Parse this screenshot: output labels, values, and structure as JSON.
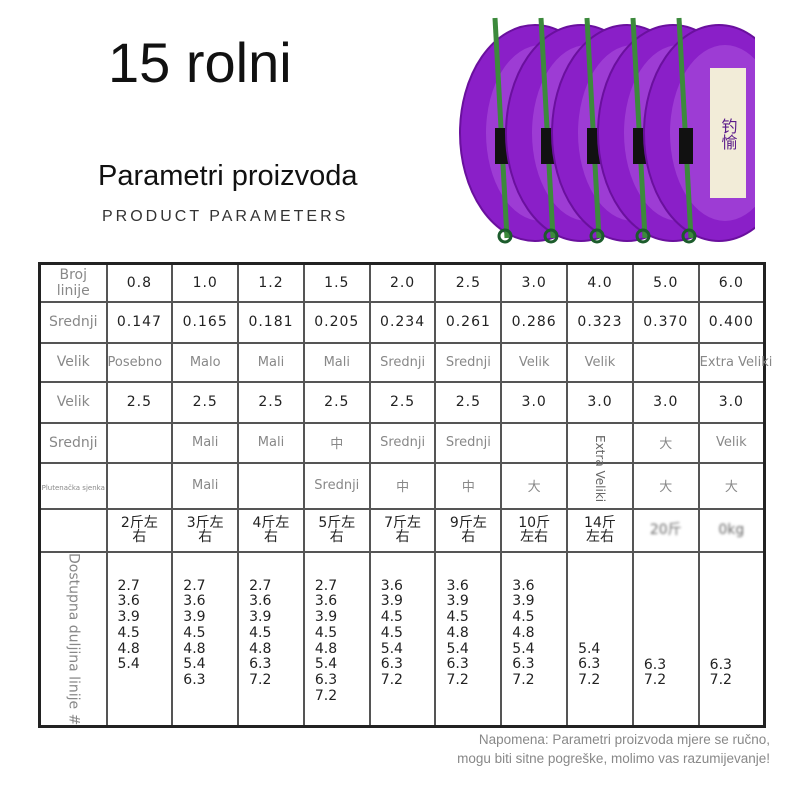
{
  "title": "15 rolni",
  "subtitle": "Parametri proizvoda",
  "subtitle_en": "PRODUCT PARAMETERS",
  "product_image": {
    "spool_color": "#8a1fc8",
    "spool_count": 5,
    "label_text": "钓愉"
  },
  "table": {
    "rows": [
      {
        "label": "Broj linije",
        "cells": [
          "0.8",
          "1.0",
          "1.2",
          "1.5",
          "2.0",
          "2.5",
          "3.0",
          "4.0",
          "5.0",
          "6.0"
        ]
      },
      {
        "label": "Srednji",
        "cells": [
          "0.147",
          "0.165",
          "0.181",
          "0.205",
          "0.234",
          "0.261",
          "0.286",
          "0.323",
          "0.370",
          "0.400"
        ]
      },
      {
        "label": "Velik",
        "cells": [
          "Posebno",
          "Malo",
          "Mali",
          "Mali",
          "Srednji",
          "Srednji",
          "Velik",
          "Velik",
          "",
          "Extra Veliki"
        ]
      },
      {
        "label": "Velik",
        "cells": [
          "2.5",
          "2.5",
          "2.5",
          "2.5",
          "2.5",
          "2.5",
          "3.0",
          "3.0",
          "3.0",
          "3.0"
        ]
      },
      {
        "label": "Srednji",
        "cells": [
          "",
          "Mali",
          "Mali",
          "中",
          "Srednji",
          "Srednji",
          "",
          "",
          "大",
          "Velik"
        ]
      },
      {
        "label": "Plutenačka sjenka",
        "cells": [
          "",
          "Mali",
          "",
          "Srednji",
          "中",
          "中",
          "大",
          "Extra Veliki",
          "大",
          "大"
        ]
      },
      {
        "label": "",
        "cells": [
          "2斤左右",
          "3斤左右",
          "4斤左右",
          "5斤左右",
          "7斤左右",
          "9斤左右",
          "10斤左右",
          "14斤左右",
          "20斤",
          "0kg"
        ]
      },
      {
        "label": "Dostupna duljina linije #",
        "cells": [
          [
            "2.7",
            "3.6",
            "3.9",
            "4.5",
            "4.8",
            "5.4"
          ],
          [
            "2.7",
            "3.6",
            "3.9",
            "4.5",
            "4.8",
            "5.4",
            "6.3"
          ],
          [
            "2.7",
            "3.6",
            "3.9",
            "4.5",
            "4.8",
            "6.3",
            "7.2"
          ],
          [
            "2.7",
            "3.6",
            "3.9",
            "4.5",
            "4.8",
            "5.4",
            "6.3",
            "7.2"
          ],
          [
            "3.6",
            "3.9",
            "4.5",
            "4.5",
            "5.4",
            "6.3",
            "7.2"
          ],
          [
            "3.6",
            "3.9",
            "4.5",
            "4.8",
            "5.4",
            "6.3",
            "7.2"
          ],
          [
            "3.6",
            "3.9",
            "4.5",
            "4.8",
            "5.4",
            "6.3",
            "7.2"
          ],
          [
            "5.4",
            "6.3",
            "7.2"
          ],
          [
            "6.3",
            "7.2"
          ],
          [
            "6.3",
            "7.2"
          ]
        ]
      }
    ]
  },
  "note": [
    "Napomena: Parametri proizvoda mjere se ručno,",
    "mogu biti sitne pogreške, molimo vas razumijevanje!"
  ]
}
